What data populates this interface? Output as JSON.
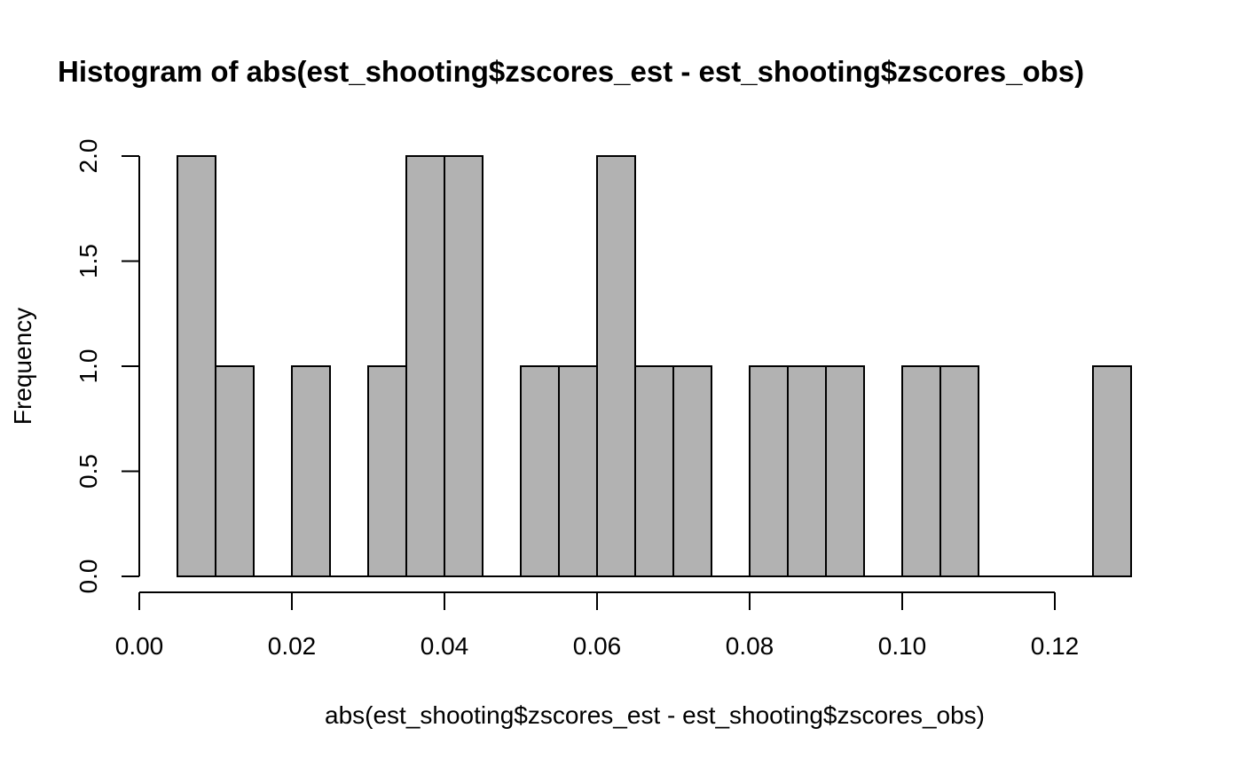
{
  "chart_data": {
    "type": "bar",
    "title": "Histogram of abs(est_shooting$zscores_est - est_shooting$zscores_obs)",
    "xlabel": "abs(est_shooting$zscores_est - est_shooting$zscores_obs)",
    "ylabel": "Frequency",
    "xlim": [
      0,
      0.12
    ],
    "ylim": [
      0,
      2
    ],
    "x_ticks": [
      "0.00",
      "0.02",
      "0.04",
      "0.06",
      "0.08",
      "0.10",
      "0.12"
    ],
    "y_ticks": [
      "0.0",
      "0.5",
      "1.0",
      "1.5",
      "2.0"
    ],
    "bin_width": 0.005,
    "bins": [
      {
        "start": 0.005,
        "end": 0.01,
        "count": 2
      },
      {
        "start": 0.01,
        "end": 0.015,
        "count": 1
      },
      {
        "start": 0.015,
        "end": 0.02,
        "count": 0
      },
      {
        "start": 0.02,
        "end": 0.025,
        "count": 1
      },
      {
        "start": 0.025,
        "end": 0.03,
        "count": 0
      },
      {
        "start": 0.03,
        "end": 0.035,
        "count": 1
      },
      {
        "start": 0.035,
        "end": 0.04,
        "count": 2
      },
      {
        "start": 0.04,
        "end": 0.045,
        "count": 2
      },
      {
        "start": 0.045,
        "end": 0.05,
        "count": 0
      },
      {
        "start": 0.05,
        "end": 0.055,
        "count": 1
      },
      {
        "start": 0.055,
        "end": 0.06,
        "count": 1
      },
      {
        "start": 0.06,
        "end": 0.065,
        "count": 2
      },
      {
        "start": 0.065,
        "end": 0.07,
        "count": 1
      },
      {
        "start": 0.07,
        "end": 0.075,
        "count": 1
      },
      {
        "start": 0.075,
        "end": 0.08,
        "count": 0
      },
      {
        "start": 0.08,
        "end": 0.085,
        "count": 1
      },
      {
        "start": 0.085,
        "end": 0.09,
        "count": 1
      },
      {
        "start": 0.09,
        "end": 0.095,
        "count": 1
      },
      {
        "start": 0.095,
        "end": 0.1,
        "count": 0
      },
      {
        "start": 0.1,
        "end": 0.105,
        "count": 1
      },
      {
        "start": 0.105,
        "end": 0.11,
        "count": 1
      },
      {
        "start": 0.11,
        "end": 0.115,
        "count": 0
      },
      {
        "start": 0.115,
        "end": 0.12,
        "count": 0
      },
      {
        "start": 0.12,
        "end": 0.125,
        "count": 0
      },
      {
        "start": 0.125,
        "end": 0.13,
        "count": 1
      }
    ],
    "bar_color": "#b2b2b2",
    "grid": false,
    "legend": "none"
  }
}
